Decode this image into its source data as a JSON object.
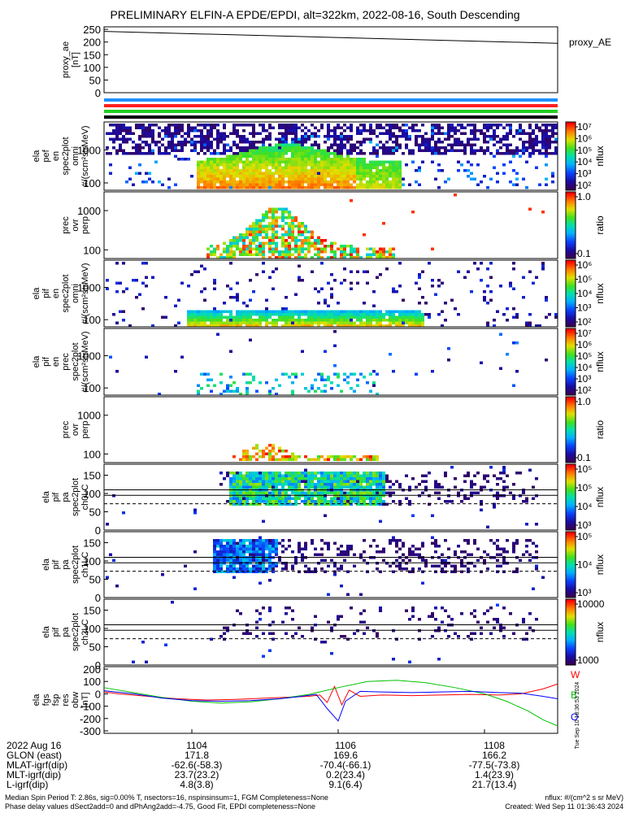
{
  "title": "PRELIMINARY ELFIN-A EPDE/EPDI, alt=322km, 2022-08-16, South Descending",
  "side_timestamp": "Tue Sep 10 18:36:53 2024",
  "footer": {
    "line1": "Median Spin Period T: 2.86s, sig=0.00% T, nsectors=16, nspinsinsum=1, FGM Completeness=None",
    "line2": "Phase delay values dSect2add=0 and dPhAng2add=-4.75, Good Fit, EPDI completeness=None",
    "units": "nflux: #/(cm^2 s sr MeV)",
    "created": "Created: Wed Sep 11 01:36:43 2024"
  },
  "orbit_table": {
    "row_labels": [
      "2022 Aug 16",
      "GLON (east)",
      "MLAT-igrf(dip)",
      "MLT-igrf(dip)",
      "L-igrf(dip)"
    ],
    "columns": [
      {
        "time": "1104",
        "values": [
          "171.8",
          "-62.6(-58.3)",
          "23.7(23.2)",
          "4.8(3.8)"
        ]
      },
      {
        "time": "1106",
        "values": [
          "169.6",
          "-70.4(-66.1)",
          "0.2(23.4)",
          "9.1(6.4)"
        ]
      },
      {
        "time": "1108",
        "values": [
          "166.2",
          "-77.5(-73.8)",
          "1.4(23.9)",
          "21.7(13.4)"
        ]
      }
    ]
  },
  "chart_data": [
    {
      "type": "line",
      "panel": "proxy_ae",
      "ylabel": "proxy_ae [nT]",
      "legend": "proxy_AE",
      "yticks": [
        "0",
        "50",
        "100",
        "150",
        "200",
        "250"
      ],
      "ylim": [
        0,
        260
      ],
      "series": [
        {
          "name": "proxy_AE",
          "x": [
            1102.8,
            1109.0
          ],
          "y": [
            242,
            195
          ],
          "color": "#000000"
        }
      ]
    },
    {
      "type": "bar",
      "panel": "status_bars",
      "series": [
        {
          "color": "#1e90ff",
          "values": [
            1
          ]
        },
        {
          "color": "#ff2020",
          "values": [
            1
          ]
        },
        {
          "color": "#20d020",
          "values": [
            1
          ]
        }
      ]
    },
    {
      "type": "heatmap",
      "panel": "ela_pef_en_omni",
      "ylabel": [
        "ela",
        "pef",
        "en",
        "spec2plot",
        "omni",
        "#/(scm²strMeV)"
      ],
      "yticks": [
        "100",
        "1000"
      ],
      "ylim": [
        60,
        7000
      ],
      "yscale": "log",
      "colorbar": {
        "label": "nflux",
        "ticks": [
          "10²",
          "10³",
          "10⁴",
          "10⁵",
          "10⁶",
          "10⁷"
        ],
        "range": [
          100,
          10000000
        ],
        "scale": "log"
      }
    },
    {
      "type": "heatmap",
      "panel": "ela_prec_ovr_perp",
      "ylabel": [
        "prec",
        "ovr",
        "perp"
      ],
      "yticks": [
        "100",
        "1000"
      ],
      "ylim": [
        60,
        3000
      ],
      "yscale": "log",
      "colorbar": {
        "label": "ratio",
        "ticks": [
          "0.1",
          "1.0"
        ],
        "range": [
          0.02,
          2.0
        ],
        "scale": "log"
      }
    },
    {
      "type": "heatmap",
      "panel": "ela_pif_en_omni",
      "ylabel": [
        "ela",
        "pif",
        "en",
        "spec2plot",
        "omni",
        "#/(scm²strMeV)"
      ],
      "yticks": [
        "100",
        "1000"
      ],
      "ylim": [
        60,
        7000
      ],
      "yscale": "log",
      "colorbar": {
        "label": "nflux",
        "ticks": [
          "10²",
          "10³",
          "10⁴",
          "10⁵",
          "10⁶"
        ],
        "range": [
          100,
          1000000
        ],
        "scale": "log"
      }
    },
    {
      "type": "heatmap",
      "panel": "ela_pif_en_prec",
      "ylabel": [
        "ela",
        "pif",
        "en",
        "prec",
        "spec2plot",
        "#/(scm²strMeV)"
      ],
      "yticks": [
        "100",
        "1000"
      ],
      "ylim": [
        60,
        7000
      ],
      "yscale": "log",
      "colorbar": {
        "label": "nflux",
        "ticks": [
          "10²",
          "10³",
          "10⁴",
          "10⁵",
          "10⁶",
          "10⁷"
        ],
        "range": [
          100,
          10000000
        ],
        "scale": "log"
      }
    },
    {
      "type": "heatmap",
      "panel": "ela_pif_prec_ovr_perp",
      "ylabel": [
        "prec",
        "ovr",
        "perp"
      ],
      "yticks": [
        "100",
        "1000"
      ],
      "ylim": [
        60,
        3000
      ],
      "yscale": "log",
      "colorbar": {
        "label": "ratio",
        "ticks": [
          "0.1",
          "1.0"
        ],
        "range": [
          0.02,
          2.0
        ],
        "scale": "log"
      }
    },
    {
      "type": "heatmap",
      "panel": "ela_pif_pa_ch0LC",
      "ylabel": [
        "ela",
        "pif",
        "pa",
        "spec2plot",
        "ch0LC"
      ],
      "yticks": [
        "0",
        "50",
        "100",
        "150"
      ],
      "ylim": [
        0,
        180
      ],
      "hlines": [
        {
          "y": 110,
          "style": "solid"
        },
        {
          "y": 95,
          "style": "solid"
        },
        {
          "y": 72,
          "style": "dashed"
        }
      ],
      "colorbar": {
        "label": "nflux",
        "ticks": [
          "10³",
          "10⁴",
          "10⁵",
          "10⁵"
        ],
        "range": [
          1000,
          1000000
        ],
        "scale": "log"
      }
    },
    {
      "type": "heatmap",
      "panel": "ela_pif_pa_ch1LC",
      "ylabel": [
        "ela",
        "pif",
        "pa",
        "spec2plot",
        "ch1LC"
      ],
      "yticks": [
        "0",
        "50",
        "100",
        "150"
      ],
      "ylim": [
        0,
        180
      ],
      "hlines": [
        {
          "y": 110,
          "style": "solid"
        },
        {
          "y": 95,
          "style": "solid"
        },
        {
          "y": 72,
          "style": "dashed"
        }
      ],
      "colorbar": {
        "label": "nflux",
        "ticks": [
          "10³",
          "10⁴",
          "10⁵"
        ],
        "range": [
          500,
          1000000
        ],
        "scale": "log"
      }
    },
    {
      "type": "heatmap",
      "panel": "ela_pif_pa_ch2LC",
      "ylabel": [
        "ela",
        "pif",
        "pa",
        "spec2plot",
        "ch2LC"
      ],
      "yticks": [
        "0",
        "50",
        "100",
        "150"
      ],
      "ylim": [
        0,
        180
      ],
      "hlines": [
        {
          "y": 110,
          "style": "solid"
        },
        {
          "y": 95,
          "style": "solid"
        },
        {
          "y": 72,
          "style": "dashed"
        }
      ],
      "colorbar": {
        "label": "nflux",
        "ticks": [
          "1000",
          "10000"
        ],
        "range": [
          600,
          20000
        ],
        "scale": "log"
      }
    },
    {
      "type": "line",
      "panel": "ela_fgs_fsp_res_obw",
      "ylabel": [
        "ela",
        "fgs",
        "fsp",
        "res",
        "obw",
        "[nT]"
      ],
      "yticks": [
        "-300",
        "-200",
        "-100",
        "0",
        "100",
        "200"
      ],
      "ylim": [
        -320,
        220
      ],
      "xlim": [
        1102.8,
        1109.0
      ],
      "xticks": [
        "1104",
        "1106",
        "1108"
      ],
      "series": [
        {
          "name": "W",
          "color": "#ff0000",
          "x": [
            1102.8,
            1103.0,
            1103.4,
            1103.8,
            1104.2,
            1104.6,
            1105.0,
            1105.4,
            1105.6,
            1105.75,
            1105.85,
            1105.95,
            1106.05,
            1106.15,
            1106.3,
            1106.6,
            1107.0,
            1107.4,
            1107.8,
            1108.2,
            1108.5,
            1108.8,
            1109.0
          ],
          "y": [
            15,
            0,
            -20,
            -40,
            -50,
            -45,
            -35,
            -25,
            -20,
            -10,
            -70,
            60,
            -90,
            30,
            -20,
            -10,
            -15,
            -10,
            -5,
            -10,
            0,
            40,
            80
          ]
        },
        {
          "name": "B",
          "color": "#00c000",
          "x": [
            1102.8,
            1103.2,
            1103.6,
            1104.0,
            1104.4,
            1104.8,
            1105.2,
            1105.6,
            1106.0,
            1106.4,
            1106.8,
            1107.2,
            1107.6,
            1108.0,
            1108.3,
            1108.6,
            1108.8,
            1109.0
          ],
          "y": [
            50,
            10,
            -30,
            -60,
            -75,
            -65,
            -40,
            -5,
            50,
            100,
            110,
            90,
            50,
            0,
            -60,
            -140,
            -210,
            -260
          ]
        },
        {
          "name": "O",
          "color": "#0000ff",
          "x": [
            1102.8,
            1103.2,
            1103.6,
            1104.0,
            1104.4,
            1104.8,
            1105.2,
            1105.5,
            1105.7,
            1105.85,
            1106.0,
            1106.1,
            1106.3,
            1106.6,
            1107.0,
            1107.4,
            1107.8,
            1108.2,
            1108.5,
            1108.8,
            1109.0
          ],
          "y": [
            25,
            0,
            -35,
            -55,
            -60,
            -55,
            -40,
            -20,
            -5,
            -120,
            -220,
            -60,
            20,
            15,
            10,
            15,
            20,
            10,
            5,
            -20,
            -40
          ]
        }
      ]
    }
  ]
}
